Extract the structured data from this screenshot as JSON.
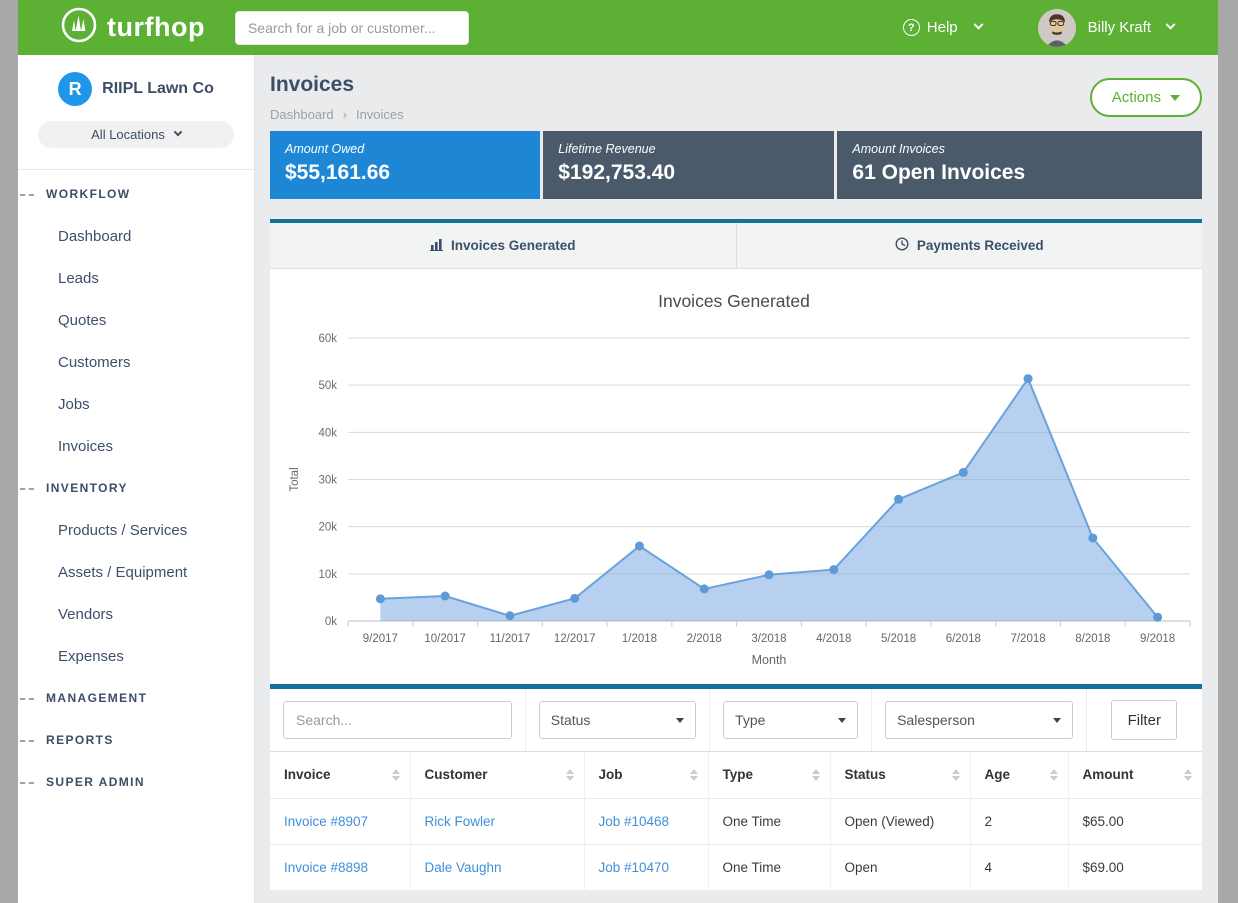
{
  "colors": {
    "brand_green": "#5cb033",
    "stat_blue": "#1e87d5",
    "stat_slate": "#4a5a6b",
    "teal_bar": "#15719b",
    "link_blue": "#3f8fd8"
  },
  "icons": {
    "help_glyph": "?"
  },
  "header": {
    "logo_text": "turfhop",
    "search_placeholder": "Search for a job or customer...",
    "help_label": "Help",
    "user_name": "Billy Kraft"
  },
  "sidebar": {
    "company_initial": "R",
    "company_name": "RIIPL Lawn Co",
    "location_selector_label": "All Locations",
    "sections": [
      {
        "label": "WORKFLOW",
        "items": [
          "Dashboard",
          "Leads",
          "Quotes",
          "Customers",
          "Jobs",
          "Invoices"
        ]
      },
      {
        "label": "INVENTORY",
        "items": [
          "Products / Services",
          "Assets / Equipment",
          "Vendors",
          "Expenses"
        ]
      },
      {
        "label": "MANAGEMENT",
        "items": []
      },
      {
        "label": "REPORTS",
        "items": []
      },
      {
        "label": "SUPER ADMIN",
        "items": []
      }
    ]
  },
  "page": {
    "title": "Invoices",
    "breadcrumb": {
      "items": [
        "Dashboard",
        "Invoices"
      ],
      "separator": "›"
    },
    "actions_label": "Actions"
  },
  "stats": [
    {
      "label": "Amount Owed",
      "value": "$55,161.66",
      "bg": "#1e87d5"
    },
    {
      "label": "Lifetime Revenue",
      "value": "$192,753.40",
      "bg": "#4a5a6b"
    },
    {
      "label": "Amount Invoices",
      "value": "61 Open Invoices",
      "bg": "#4a5a6b"
    }
  ],
  "tabs": [
    {
      "label": "Invoices Generated",
      "icon": "bar-chart-icon",
      "active": true
    },
    {
      "label": "Payments Received",
      "icon": "clock-icon",
      "active": false
    }
  ],
  "chart_data": {
    "type": "area",
    "title": "Invoices Generated",
    "xlabel": "Month",
    "ylabel": "Total",
    "categories": [
      "9/2017",
      "10/2017",
      "11/2017",
      "12/2017",
      "1/2018",
      "2/2018",
      "3/2018",
      "4/2018",
      "5/2018",
      "6/2018",
      "7/2018",
      "8/2018",
      "9/2018"
    ],
    "values": [
      4700,
      5300,
      1100,
      4800,
      15900,
      6800,
      9800,
      10900,
      25800,
      31500,
      51400,
      17600,
      800
    ],
    "ylim": [
      0,
      60000
    ],
    "ytick_labels": [
      "0k",
      "10k",
      "20k",
      "30k",
      "40k",
      "50k",
      "60k"
    ],
    "grid": true,
    "legend": "none",
    "line_color": "#6aa2dc",
    "fill_color": "rgba(124,170,226,0.55)",
    "point_color": "#5e9ad6"
  },
  "filters": {
    "search_placeholder": "Search...",
    "status_label": "Status",
    "type_label": "Type",
    "salesperson_label": "Salesperson",
    "filter_button_label": "Filter"
  },
  "table": {
    "columns": [
      "Invoice",
      "Customer",
      "Job",
      "Type",
      "Status",
      "Age",
      "Amount"
    ],
    "rows": [
      {
        "invoice": "Invoice #8907",
        "customer": "Rick Fowler",
        "job": "Job #10468",
        "type": "One Time",
        "status": "Open (Viewed)",
        "age": "2",
        "amount": "$65.00"
      },
      {
        "invoice": "Invoice #8898",
        "customer": "Dale Vaughn",
        "job": "Job #10470",
        "type": "One Time",
        "status": "Open",
        "age": "4",
        "amount": "$69.00"
      }
    ]
  }
}
